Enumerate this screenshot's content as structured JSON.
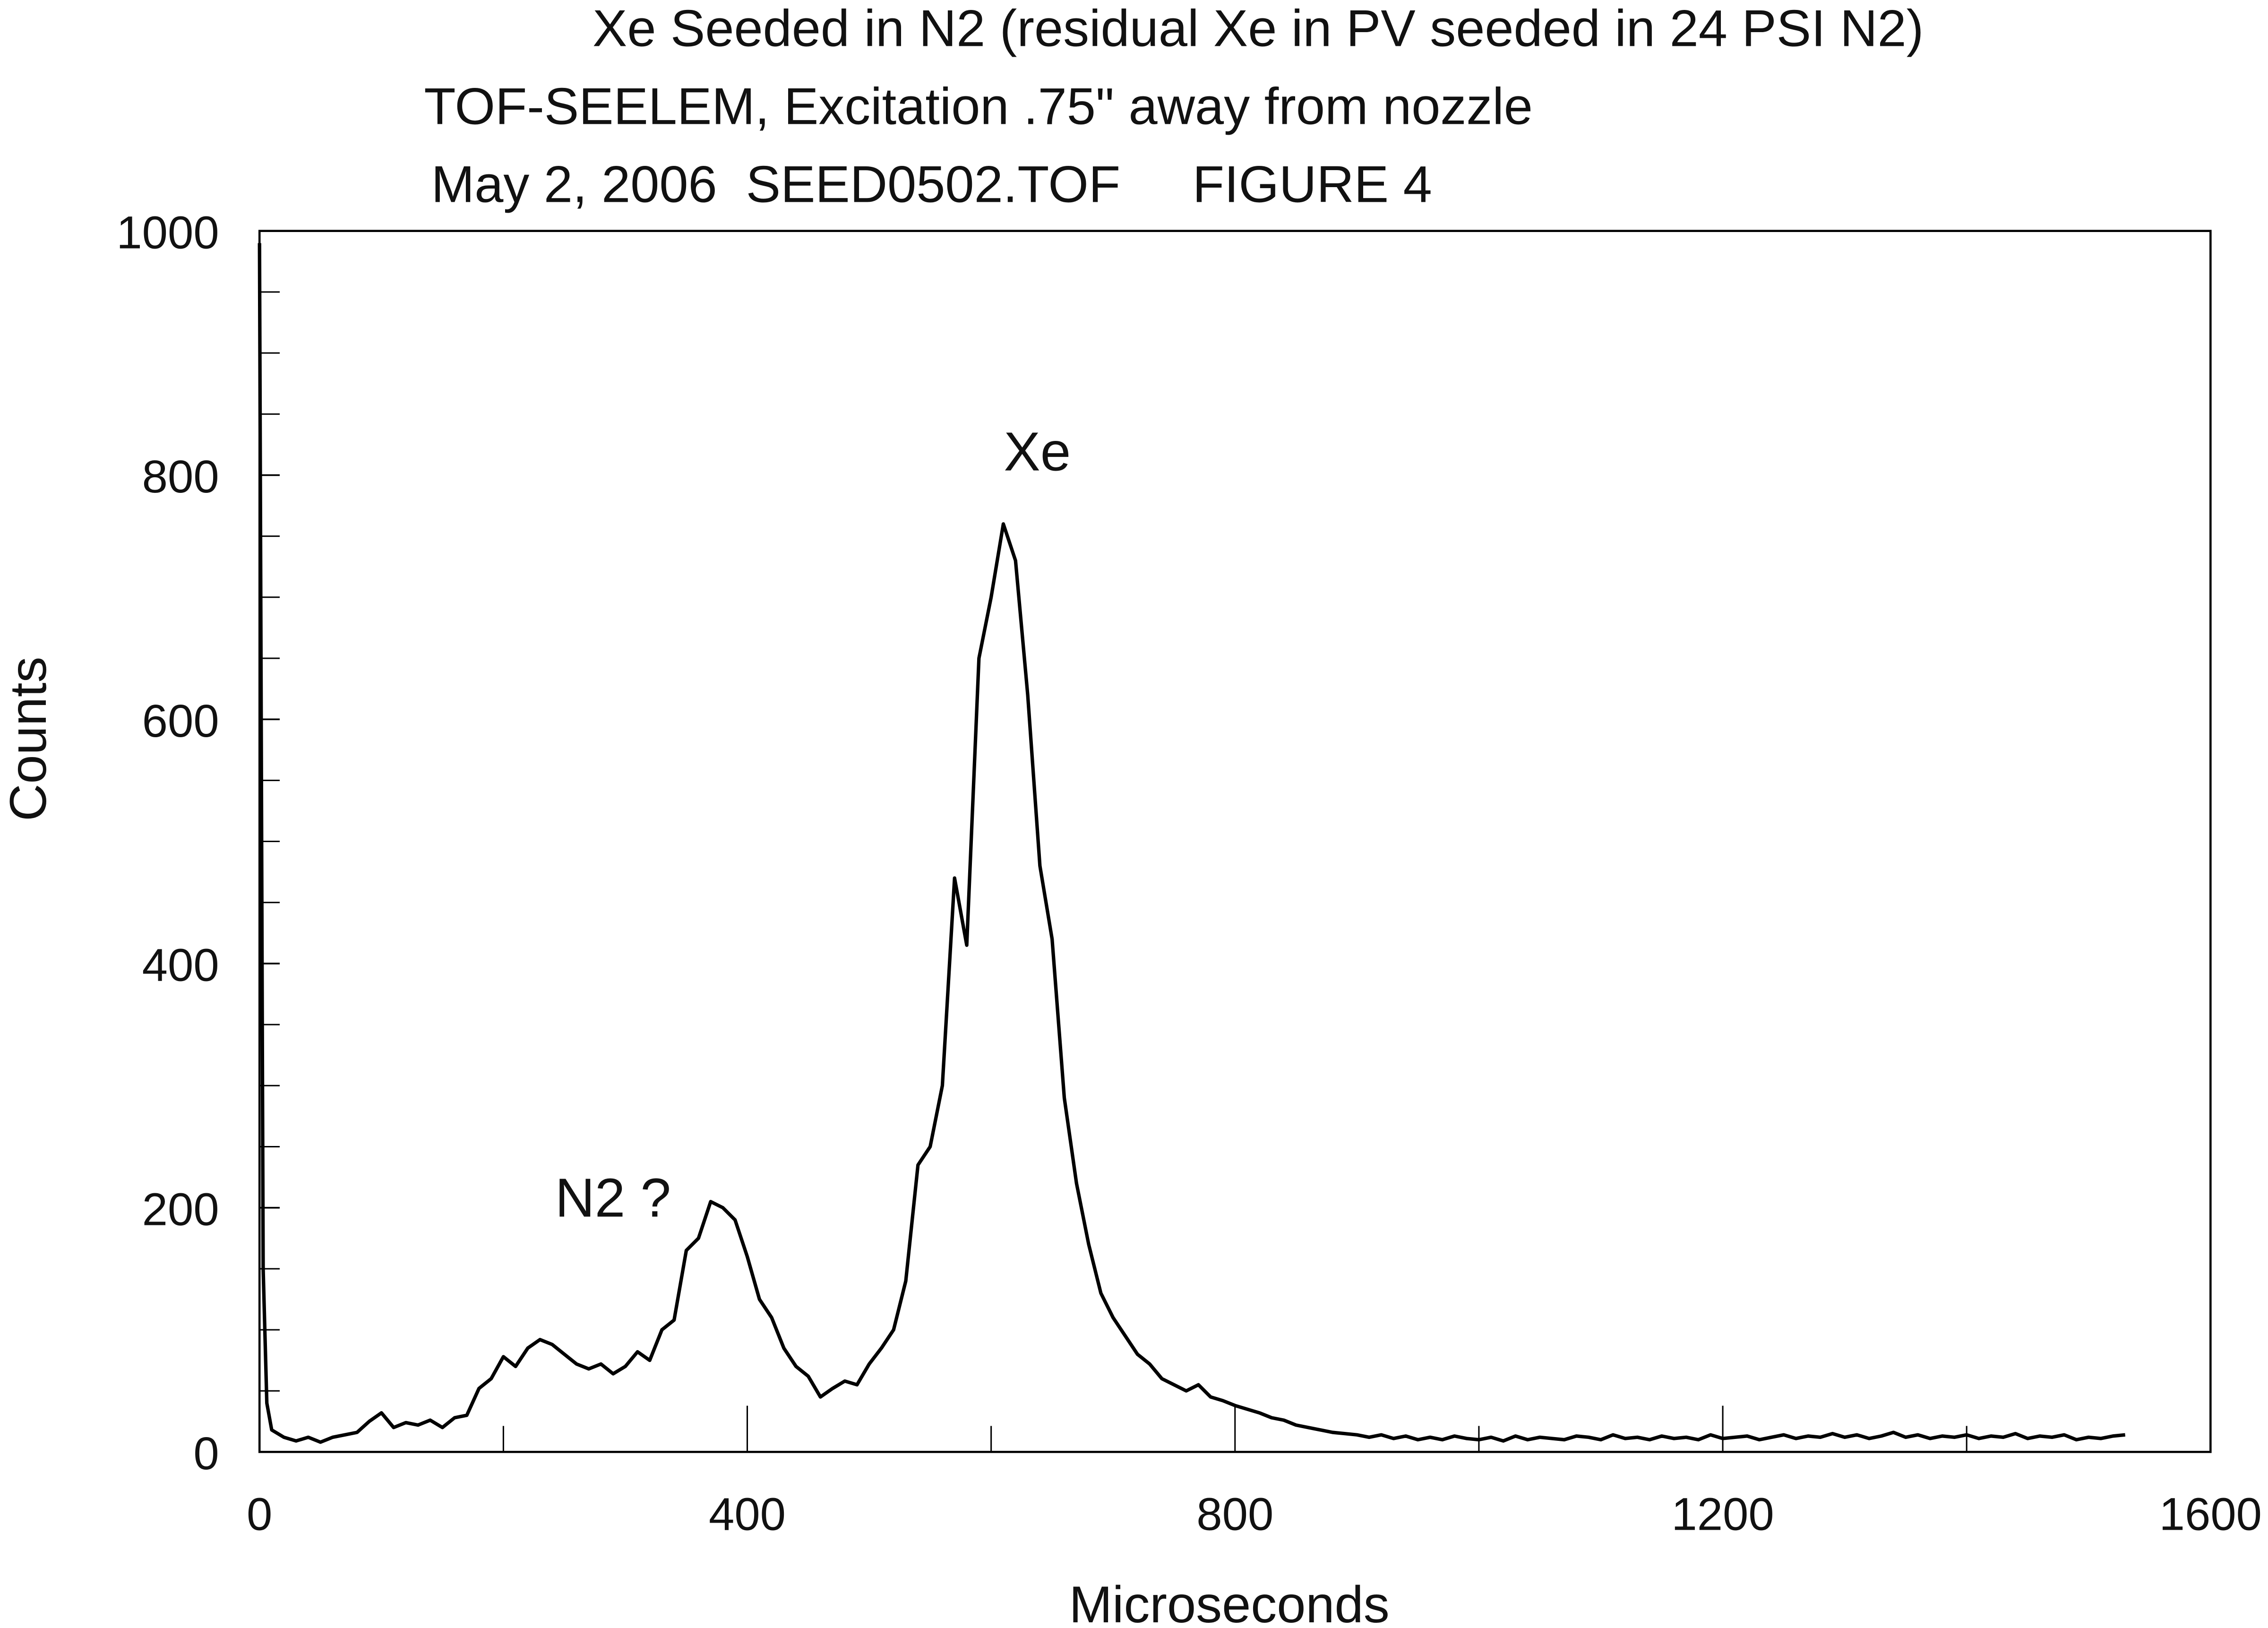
{
  "chart_data": {
    "type": "line",
    "title": "Xe Seeded in N2 (residual Xe in PV seeded in 24 PSI N2)",
    "subtitle": [
      "TOF-SEELEM, Excitation .75\" away from nozzle",
      "May 2, 2006  SEED0502.TOF     FIGURE 4"
    ],
    "xlabel": "Microseconds",
    "ylabel": "Counts",
    "annotations": [
      "Xe",
      "N2 ?"
    ],
    "color": "#000000",
    "x": [
      0,
      3,
      6,
      10,
      20,
      30,
      40,
      50,
      60,
      70,
      80,
      90,
      100,
      110,
      120,
      130,
      140,
      150,
      160,
      170,
      180,
      190,
      200,
      210,
      220,
      230,
      240,
      250,
      260,
      270,
      280,
      290,
      300,
      310,
      320,
      330,
      340,
      350,
      360,
      370,
      380,
      390,
      400,
      410,
      420,
      430,
      440,
      450,
      460,
      470,
      480,
      490,
      500,
      510,
      520,
      530,
      540,
      550,
      560,
      570,
      580,
      590,
      600,
      610,
      620,
      630,
      640,
      650,
      660,
      670,
      680,
      690,
      700,
      710,
      720,
      730,
      740,
      750,
      760,
      770,
      780,
      790,
      800,
      810,
      820,
      830,
      840,
      850,
      860,
      870,
      880,
      890,
      900,
      910,
      920,
      930,
      940,
      950,
      960,
      970,
      980,
      990,
      1000,
      1010,
      1020,
      1030,
      1040,
      1050,
      1060,
      1070,
      1080,
      1090,
      1100,
      1110,
      1120,
      1130,
      1140,
      1150,
      1160,
      1170,
      1180,
      1190,
      1200,
      1210,
      1220,
      1230,
      1240,
      1250,
      1260,
      1270,
      1280,
      1290,
      1300,
      1310,
      1320,
      1330,
      1340,
      1350,
      1360,
      1370,
      1380,
      1390,
      1400,
      1410,
      1420,
      1430,
      1440,
      1450,
      1460,
      1470,
      1480,
      1490,
      1500,
      1510,
      1520,
      1530
    ],
    "values": [
      990,
      150,
      40,
      18,
      12,
      9,
      12,
      8,
      12,
      14,
      16,
      25,
      32,
      20,
      24,
      22,
      26,
      20,
      28,
      30,
      52,
      60,
      78,
      70,
      85,
      92,
      88,
      80,
      72,
      68,
      72,
      64,
      70,
      82,
      75,
      100,
      108,
      165,
      175,
      205,
      200,
      190,
      160,
      125,
      110,
      85,
      70,
      62,
      45,
      52,
      58,
      55,
      72,
      85,
      100,
      140,
      235,
      250,
      300,
      470,
      415,
      650,
      700,
      760,
      730,
      620,
      480,
      420,
      290,
      220,
      170,
      130,
      110,
      95,
      80,
      72,
      60,
      55,
      50,
      55,
      45,
      42,
      38,
      35,
      32,
      28,
      26,
      22,
      20,
      18,
      16,
      15,
      14,
      12,
      14,
      11,
      13,
      10,
      12,
      10,
      13,
      11,
      10,
      12,
      9,
      13,
      10,
      12,
      11,
      10,
      13,
      12,
      10,
      14,
      11,
      12,
      10,
      13,
      11,
      12,
      10,
      14,
      11,
      12,
      13,
      10,
      12,
      14,
      11,
      13,
      12,
      15,
      12,
      14,
      11,
      13,
      16,
      12,
      14,
      11,
      13,
      12,
      14,
      11,
      13,
      12,
      15,
      11,
      13,
      12,
      14,
      10,
      12,
      11,
      13,
      14
    ],
    "xlim": [
      0,
      1600
    ],
    "ylim": [
      0,
      1000
    ],
    "xticks": [
      0,
      400,
      800,
      1200,
      1600
    ],
    "xminorticks": [
      200,
      600,
      1000,
      1400
    ],
    "yticks": [
      0,
      200,
      400,
      600,
      800,
      1000
    ],
    "yminorticks": [
      50,
      100,
      150,
      250,
      300,
      350,
      450,
      500,
      550,
      650,
      700,
      750,
      850,
      900,
      950
    ]
  }
}
